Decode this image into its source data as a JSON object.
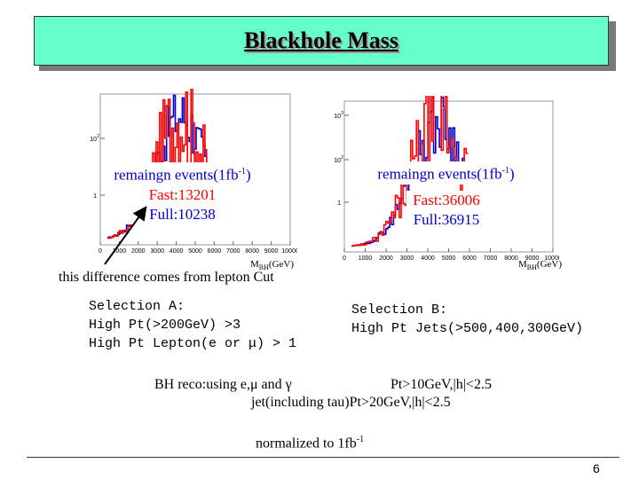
{
  "title": "Blackhole Mass",
  "colors": {
    "title_bg": "#66ffcc",
    "blue": "#0000c8",
    "red": "#ff0000"
  },
  "left_plot": {
    "remaining_prefix": "remaingn events(1fb",
    "remaining_sup": "-1",
    "remaining_suffix": ")",
    "fast": "Fast:13201",
    "full": "Full:10238",
    "ytick_labels": [
      "10",
      "1"
    ],
    "ytick_sups": [
      "2",
      ""
    ],
    "xtick_labels": [
      "0",
      "1000",
      "2000",
      "3000",
      "4000",
      "5000",
      "6000",
      "7000",
      "8000",
      "9000",
      "10000"
    ],
    "axis_label_main": "M",
    "axis_label_sub": "BH",
    "axis_label_unit": "(GeV)"
  },
  "right_plot": {
    "remaining_prefix": "remaingn events(1fb",
    "remaining_sup": "-1",
    "remaining_suffix": ")",
    "fast": "Fast:36006",
    "full": "Full:36915",
    "ytick_labels": [
      "10",
      "10",
      "1"
    ],
    "ytick_sups": [
      "3",
      "2",
      ""
    ],
    "xtick_labels": [
      "0",
      "1000",
      "2000",
      "3000",
      "4000",
      "5000",
      "6000",
      "7000",
      "8000",
      "9000",
      "10000"
    ],
    "axis_label_main": "M",
    "axis_label_sub": "BH",
    "axis_label_unit": "(GeV)"
  },
  "note": "this difference comes from lepton Cut",
  "selection_a": [
    "Selection A:",
    "High Pt(>200GeV) >3",
    "High Pt Lepton(e or μ) > 1"
  ],
  "selection_b": [
    "Selection B:",
    "High Pt Jets(>500,400,300GeV)"
  ],
  "bh_reco": {
    "line1_a": "BH reco:using e,μ and γ",
    "line1_b": "Pt>10GeV,|h|<2.5",
    "line2": "jet(including tau)Pt>20GeV,|h|<2.5"
  },
  "normalized_prefix": "normalized to 1fb",
  "normalized_sup": "-1",
  "page_number": "6"
}
